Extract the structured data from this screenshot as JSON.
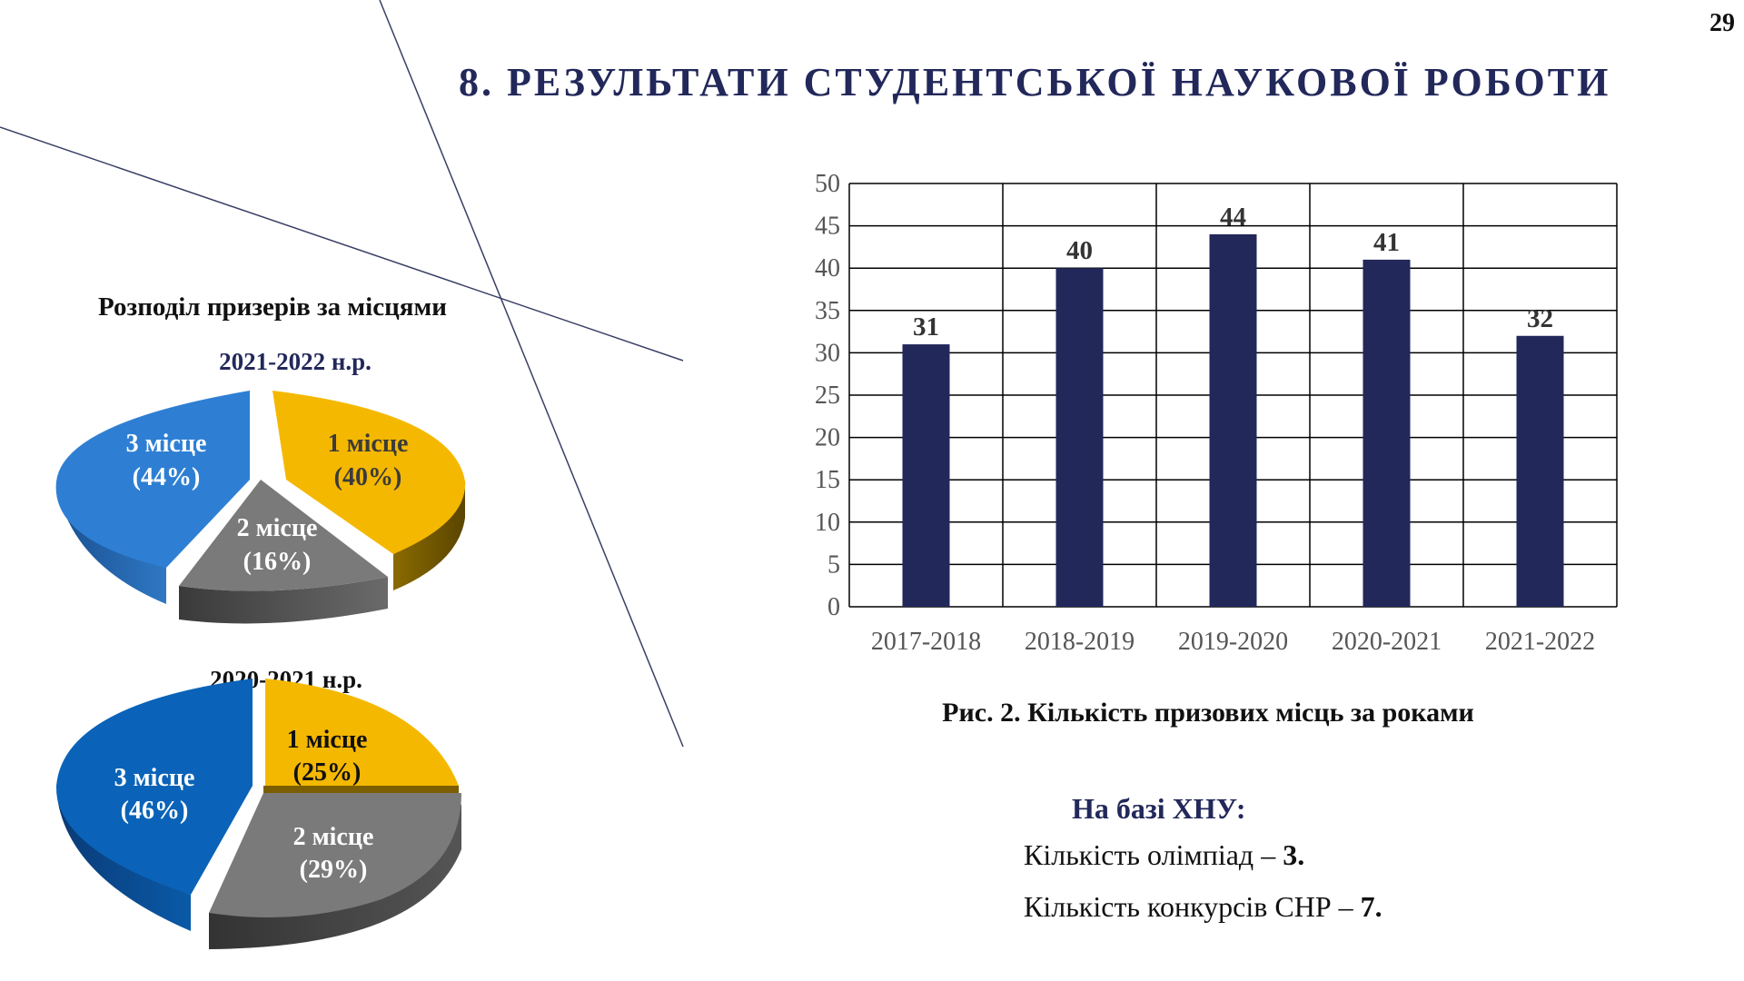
{
  "page_number": "29",
  "title": "8. РЕЗУЛЬТАТИ СТУДЕНТСЬКОЇ НАУКОВОЇ РОБОТИ",
  "pies_heading": "Розподіл призерів за місцями",
  "colors": {
    "title": "#22285a",
    "bar": "#22285a",
    "first_place": "#f5b800",
    "second_place": "#7a7a7a",
    "third_place": "#2e7fd3",
    "third_place_alt": "#0a63b8"
  },
  "pies": [
    {
      "year_label": "2021-2022 н.р.",
      "slices": [
        {
          "name": "1 місце",
          "pct_label": "(40%)",
          "value": 40
        },
        {
          "name": "2 місце",
          "pct_label": "(16%)",
          "value": 16
        },
        {
          "name": "3 місце",
          "pct_label": "(44%)",
          "value": 44
        }
      ]
    },
    {
      "year_label": "2020-2021 н.р.",
      "slices": [
        {
          "name": "1 місце",
          "pct_label": "(25%)",
          "value": 25
        },
        {
          "name": "2 місце",
          "pct_label": "(29%)",
          "value": 29
        },
        {
          "name": "3 місце",
          "pct_label": "(46%)",
          "value": 46
        }
      ]
    }
  ],
  "chart_data": {
    "type": "bar",
    "categories": [
      "2017-2018",
      "2018-2019",
      "2019-2020",
      "2020-2021",
      "2021-2022"
    ],
    "values": [
      31,
      40,
      44,
      41,
      32
    ],
    "value_labels": [
      "31",
      "40",
      "44",
      "41",
      "32"
    ],
    "y_ticks": [
      "0",
      "5",
      "10",
      "15",
      "20",
      "25",
      "30",
      "35",
      "40",
      "45",
      "50"
    ],
    "ylim": [
      0,
      50
    ],
    "grid": true
  },
  "chart_caption": "Рис. 2. Кількість призових місць за роками",
  "info": {
    "heading": "На базі ХНУ:",
    "olympiads_label": "Кількість олімпіад – ",
    "olympiads_value": "3.",
    "contests_label": "Кількість конкурсів СНР – ",
    "contests_value": "7."
  }
}
